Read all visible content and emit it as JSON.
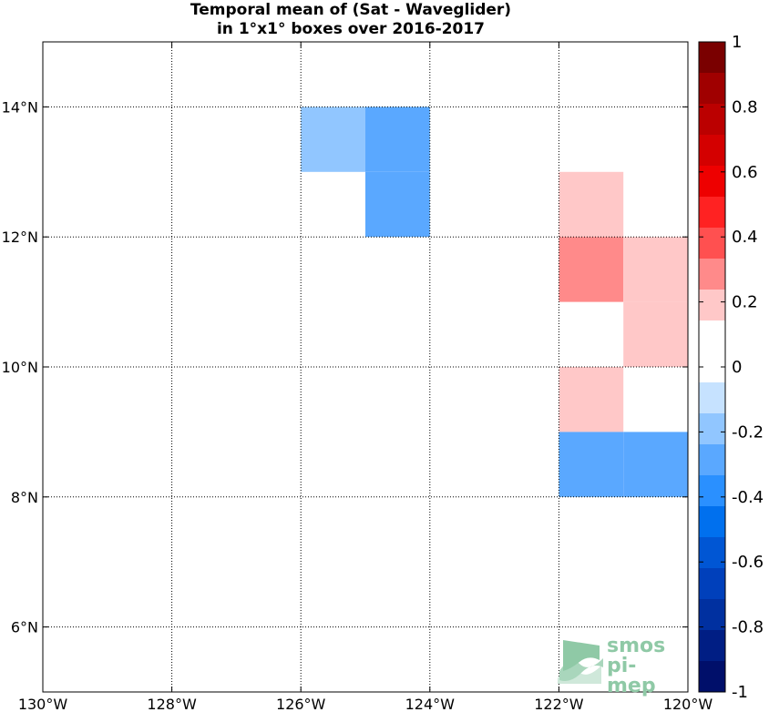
{
  "chart_data": {
    "type": "heatmap",
    "title_lines": [
      "Temporal mean of (Sat - Waveglider)",
      "in 1°x1° boxes over 2016-2017"
    ],
    "x_range": [
      -130,
      -120
    ],
    "y_range": [
      5,
      15
    ],
    "x_ticks": [
      -130,
      -128,
      -126,
      -124,
      -122,
      -120
    ],
    "x_tick_labels": [
      "130°W",
      "128°W",
      "126°W",
      "124°W",
      "122°W",
      "120°W"
    ],
    "y_ticks": [
      6,
      8,
      10,
      12,
      14
    ],
    "y_tick_labels": [
      "6°N",
      "8°N",
      "10°N",
      "12°N",
      "14°N"
    ],
    "grid": "dotted",
    "cells": [
      {
        "lon": -126,
        "lat": 13,
        "value": -0.15
      },
      {
        "lon": -125,
        "lat": 13,
        "value": -0.25
      },
      {
        "lon": -125,
        "lat": 12,
        "value": -0.25
      },
      {
        "lon": -122,
        "lat": 12,
        "value": 0.15
      },
      {
        "lon": -122,
        "lat": 11,
        "value": 0.25
      },
      {
        "lon": -121,
        "lat": 11,
        "value": 0.15
      },
      {
        "lon": -121,
        "lat": 10,
        "value": 0.15
      },
      {
        "lon": -122,
        "lat": 9,
        "value": 0.15
      },
      {
        "lon": -122,
        "lat": 8,
        "value": -0.25
      },
      {
        "lon": -121,
        "lat": 8,
        "value": -0.25
      }
    ],
    "colorbar": {
      "range": [
        -1,
        1
      ],
      "ticks": [
        1,
        0.8,
        0.6,
        0.4,
        0.2,
        0,
        -0.2,
        -0.4,
        -0.6,
        -0.8,
        -1
      ],
      "tick_labels": [
        "1",
        "0.8",
        "0.6",
        "0.4",
        "0.2",
        "0",
        "-0.2",
        "-0.4",
        "-0.6",
        "-0.8",
        "-1"
      ],
      "colors_top_to_bottom": [
        "#7a0000",
        "#a00000",
        "#bb0000",
        "#d40000",
        "#ee0000",
        "#ff2222",
        "#ff5050",
        "#ff8a8a",
        "#ffc8c8",
        "#ffffff",
        "#ffffff",
        "#c6e2ff",
        "#91c6ff",
        "#5aa8ff",
        "#2a90ff",
        "#0070ee",
        "#0056d4",
        "#0040bb",
        "#0030a0",
        "#001e84",
        "#000f6a"
      ]
    },
    "watermark": {
      "line1": "smos",
      "line2": "pi-mep"
    }
  }
}
